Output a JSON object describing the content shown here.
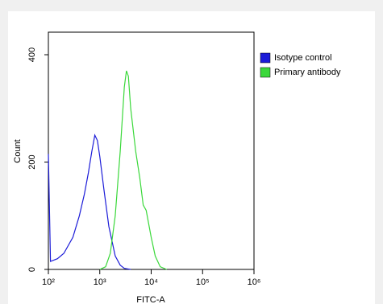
{
  "chart_data": {
    "type": "line",
    "xlabel": "FITC-A",
    "ylabel": "Count",
    "xscale": "log",
    "xlim": [
      100,
      1000000
    ],
    "ylim": [
      0,
      442
    ],
    "xticks": [
      {
        "value": 100,
        "label": "10²"
      },
      {
        "value": 1000,
        "label": "10³"
      },
      {
        "value": 10000,
        "label": "10⁴"
      },
      {
        "value": 100000,
        "label": "10⁵"
      },
      {
        "value": 1000000,
        "label": "10⁶"
      }
    ],
    "yticks": [
      0,
      200,
      400
    ],
    "legend": "top-right",
    "series": [
      {
        "name": "Isotype control",
        "color": "#1c1cd8",
        "x": [
          100,
          110,
          150,
          200,
          300,
          400,
          500,
          600,
          700,
          800,
          900,
          1000,
          1200,
          1500,
          2000,
          2500,
          3000,
          4000
        ],
        "values": [
          215,
          15,
          20,
          30,
          60,
          100,
          140,
          180,
          220,
          250,
          240,
          210,
          150,
          80,
          25,
          8,
          2,
          0
        ]
      },
      {
        "name": "Primary antibody",
        "color": "#3ad83a",
        "x": [
          1000,
          1300,
          1600,
          2000,
          2500,
          3000,
          3300,
          3600,
          4000,
          5000,
          6000,
          7000,
          8000,
          10000,
          12000,
          15000,
          20000
        ],
        "values": [
          0,
          5,
          30,
          100,
          220,
          340,
          370,
          360,
          300,
          220,
          170,
          120,
          110,
          60,
          25,
          5,
          0
        ]
      }
    ]
  }
}
